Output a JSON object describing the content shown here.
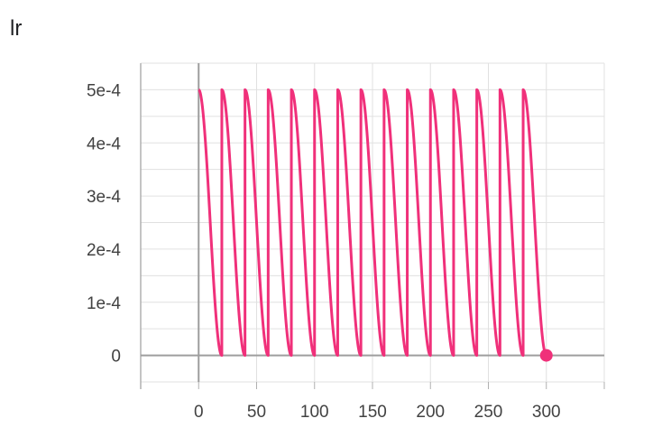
{
  "chart_data": {
    "type": "line",
    "title": "lr",
    "xlabel": "",
    "ylabel": "",
    "xlim": [
      -50,
      350
    ],
    "ylim": [
      -5e-05,
      0.00055
    ],
    "x_ticks": [
      0,
      50,
      100,
      150,
      200,
      250,
      300
    ],
    "x_tick_labels": [
      "0",
      "50",
      "100",
      "150",
      "200",
      "250",
      "300"
    ],
    "y_ticks": [
      0,
      0.0001,
      0.0002,
      0.0003,
      0.0004,
      0.0005
    ],
    "y_tick_labels": [
      "0",
      "1e-4",
      "2e-4",
      "3e-4",
      "4e-4",
      "5e-4"
    ],
    "grid": true,
    "series": [
      {
        "color": "#f0307a",
        "schedule": "cosine annealing with warm restarts",
        "max_value": 0.0005,
        "min_value": 0,
        "cycle_length": 20,
        "x_start": 0,
        "x_end": 300,
        "highlight_last_point": true
      }
    ]
  }
}
